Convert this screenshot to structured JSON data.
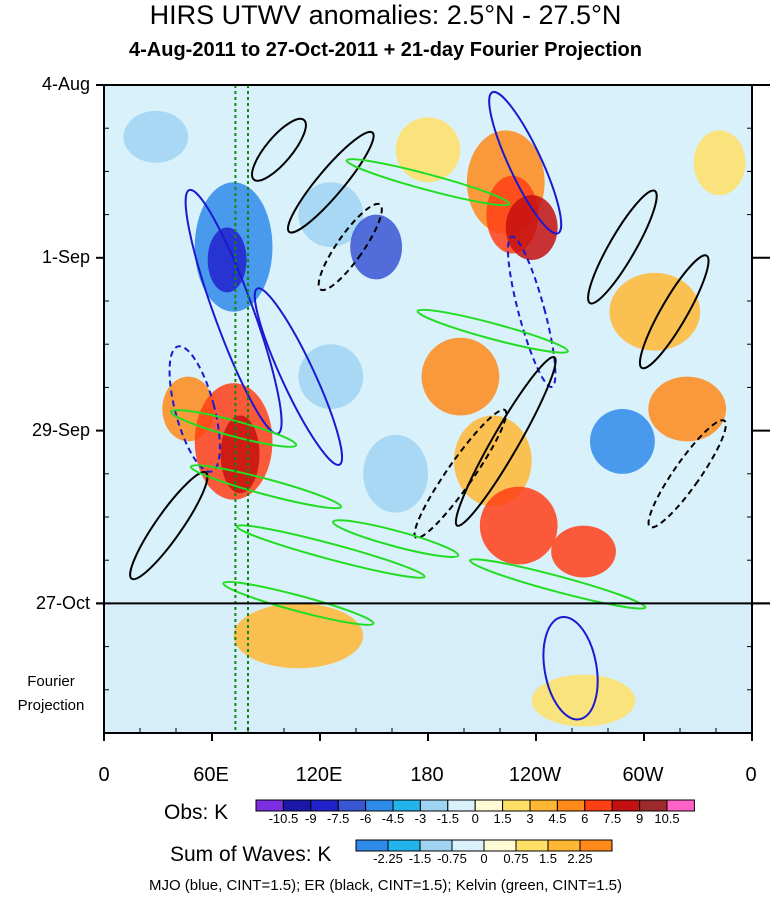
{
  "chart_data": {
    "type": "heatmap",
    "title": "HIRS UTWV anomalies: 2.5°N - 27.5°N",
    "subtitle": "4-Aug-2011 to 27-Oct-2011 + 21-day Fourier Projection",
    "x_ticks": [
      "0",
      "60E",
      "120E",
      "180",
      "120W",
      "60W",
      "0"
    ],
    "x_tick_lon": [
      0,
      60,
      120,
      180,
      240,
      300,
      360
    ],
    "y_ticks": [
      "4-Aug",
      "1-Sep",
      "29-Sep",
      "27-Oct"
    ],
    "y_tick_day": [
      0,
      28,
      56,
      84
    ],
    "y_range_days": [
      0,
      105
    ],
    "forecast_start_day": 84,
    "forecast_label": "Fourier Projection",
    "reference_lines_lon": [
      73,
      80
    ],
    "obs_colorbar": {
      "title": "Obs: K",
      "levels": [
        "-10.5",
        "-9",
        "-7.5",
        "-6",
        "-4.5",
        "-3",
        "-1.5",
        "0",
        "1.5",
        "3",
        "4.5",
        "6",
        "7.5",
        "9",
        "10.5"
      ],
      "colors": [
        "#7b2fe0",
        "#1d17a8",
        "#2222cc",
        "#3a56d2",
        "#2f8bea",
        "#22b4ec",
        "#9fd3f2",
        "#d9f1fb",
        "#fffbd4",
        "#ffe066",
        "#ffb733",
        "#ff8a1a",
        "#ff4016",
        "#c41010",
        "#9c2a2a",
        "#ff63c8"
      ]
    },
    "waves_colorbar": {
      "title": "Sum of Waves: K",
      "levels": [
        "-2.25",
        "-1.5",
        "-0.75",
        "0",
        "0.75",
        "1.5",
        "2.25"
      ],
      "colors": [
        "#2f8bea",
        "#22b4ec",
        "#9fd3f2",
        "#d9f1fb",
        "#fffbd4",
        "#ffe066",
        "#ffb733",
        "#ff8a1a"
      ]
    },
    "contours": [
      {
        "name": "MJO",
        "color": "#1a1ad0"
      },
      {
        "name": "ER",
        "color": "#000000"
      },
      {
        "name": "Kelvin",
        "color": "#22dd22"
      }
    ],
    "footnote": "MJO (blue, CINT=1.5); ER (black, CINT=1.5); Kelvin (green, CINT=1.5)"
  }
}
